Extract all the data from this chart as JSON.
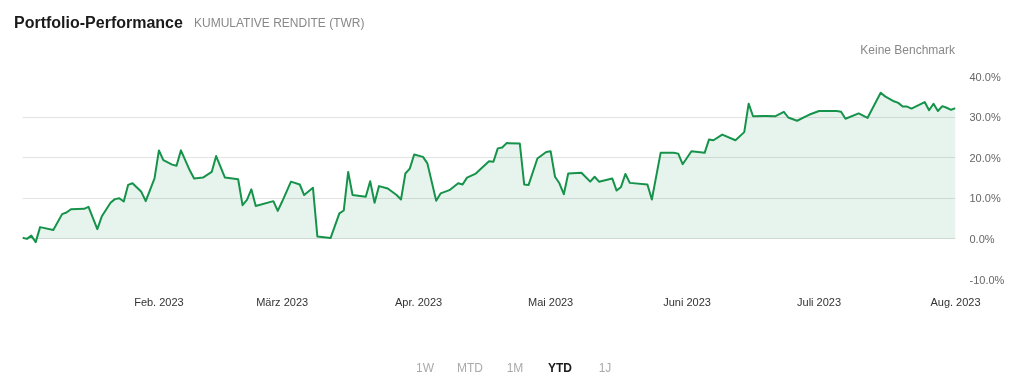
{
  "chart_data": {
    "type": "area",
    "title": "Portfolio-Performance",
    "subtitle": "KUMULATIVE RENDITE (TWR)",
    "annotations": [
      "Keine Benchmark",
      "1W",
      "MTD",
      "1M",
      "YTD",
      "1J"
    ],
    "x": [
      "2023-01-01",
      "2023-01-02",
      "2023-01-03",
      "2023-01-04",
      "2023-01-05",
      "2023-01-08",
      "2023-01-10",
      "2023-01-11",
      "2023-01-12",
      "2023-01-15",
      "2023-01-16",
      "2023-01-18",
      "2023-01-19",
      "2023-01-21",
      "2023-01-22",
      "2023-01-23",
      "2023-01-24",
      "2023-01-25",
      "2023-01-26",
      "2023-01-28",
      "2023-01-29",
      "2023-01-31",
      "2023-02-01",
      "2023-02-02",
      "2023-02-04",
      "2023-02-05",
      "2023-02-06",
      "2023-02-08",
      "2023-02-09",
      "2023-02-11",
      "2023-02-13",
      "2023-02-14",
      "2023-02-16",
      "2023-02-19",
      "2023-02-20",
      "2023-02-21",
      "2023-02-22",
      "2023-02-23",
      "2023-02-27",
      "2023-02-28",
      "2023-03-01",
      "2023-03-03",
      "2023-03-05",
      "2023-03-06",
      "2023-03-08",
      "2023-03-09",
      "2023-03-12",
      "2023-03-14",
      "2023-03-15",
      "2023-03-16",
      "2023-03-17",
      "2023-03-20",
      "2023-03-21",
      "2023-03-22",
      "2023-03-23",
      "2023-03-25",
      "2023-03-27",
      "2023-03-28",
      "2023-03-29",
      "2023-03-30",
      "2023-03-31",
      "2023-04-02",
      "2023-04-03",
      "2023-04-05",
      "2023-04-06",
      "2023-04-08",
      "2023-04-10",
      "2023-04-11",
      "2023-04-12",
      "2023-04-14",
      "2023-04-17",
      "2023-04-18",
      "2023-04-19",
      "2023-04-20",
      "2023-04-21",
      "2023-04-24",
      "2023-04-25",
      "2023-04-26",
      "2023-04-28",
      "2023-04-30",
      "2023-05-01",
      "2023-05-02",
      "2023-05-03",
      "2023-05-04",
      "2023-05-05",
      "2023-05-08",
      "2023-05-10",
      "2023-05-11",
      "2023-05-12",
      "2023-05-15",
      "2023-05-16",
      "2023-05-17",
      "2023-05-18",
      "2023-05-19",
      "2023-05-23",
      "2023-05-24",
      "2023-05-26",
      "2023-05-29",
      "2023-05-30",
      "2023-05-31",
      "2023-06-02",
      "2023-06-05",
      "2023-06-06",
      "2023-06-07",
      "2023-06-09",
      "2023-06-12",
      "2023-06-14",
      "2023-06-15",
      "2023-06-16",
      "2023-06-19",
      "2023-06-21",
      "2023-06-23",
      "2023-06-24",
      "2023-06-26",
      "2023-06-28",
      "2023-06-29",
      "2023-07-01",
      "2023-07-05",
      "2023-07-06",
      "2023-07-07",
      "2023-07-10",
      "2023-07-12",
      "2023-07-15",
      "2023-07-16",
      "2023-07-18",
      "2023-07-19",
      "2023-07-20",
      "2023-07-21",
      "2023-07-22",
      "2023-07-25",
      "2023-07-26",
      "2023-07-27",
      "2023-07-28",
      "2023-07-29",
      "2023-07-30",
      "2023-07-31",
      "2023-08-01"
    ],
    "series": [
      {
        "color": "#16934a",
        "values": [
          0.3,
          0.0,
          0.8,
          -0.8,
          2.9,
          2.2,
          6.1,
          6.5,
          7.3,
          7.4,
          7.9,
          2.4,
          5.5,
          8.9,
          9.8,
          10.0,
          9.2,
          13.3,
          13.7,
          11.6,
          9.3,
          14.9,
          21.8,
          19.4,
          18.3,
          18.0,
          21.8,
          16.9,
          14.9,
          15.1,
          16.5,
          20.4,
          15.1,
          14.7,
          8.3,
          9.6,
          12.2,
          8.1,
          9.3,
          6.9,
          9.2,
          14.1,
          13.4,
          10.8,
          12.6,
          0.6,
          0.2,
          6.3,
          7.0,
          16.5,
          10.8,
          10.4,
          14.2,
          8.9,
          13.0,
          12.4,
          10.8,
          9.7,
          16.1,
          17.3,
          20.8,
          20.2,
          18.6,
          9.4,
          11.2,
          12.0,
          13.7,
          13.4,
          15.1,
          16.1,
          19.1,
          19.0,
          22.3,
          22.5,
          23.6,
          23.5,
          13.4,
          13.3,
          19.8,
          21.4,
          21.6,
          15.3,
          13.7,
          11.0,
          16.1,
          16.3,
          14.1,
          15.3,
          14.1,
          14.9,
          11.9,
          12.8,
          16.0,
          13.8,
          13.4,
          9.7,
          21.2,
          21.2,
          21.0,
          18.4,
          21.6,
          21.2,
          24.5,
          24.3,
          25.7,
          24.3,
          26.3,
          33.3,
          30.2,
          30.3,
          30.2,
          31.3,
          29.9,
          29.1,
          30.2,
          30.7,
          31.5,
          31.5,
          31.3,
          29.6,
          30.9,
          29.8,
          36.0,
          35.1,
          33.9,
          33.5,
          32.6,
          32.6,
          32.1,
          33.7,
          31.7,
          33.3,
          31.5,
          32.7,
          32.3,
          31.8,
          32.2
        ]
      }
    ],
    "xlim": [
      "2023-01-01",
      "2023-08-01"
    ],
    "xticks": [
      {
        "value": "2023-02-01",
        "label": "Feb. 2023"
      },
      {
        "value": "2023-03-01",
        "label": "März 2023"
      },
      {
        "value": "2023-04-01",
        "label": "Apr. 2023"
      },
      {
        "value": "2023-05-01",
        "label": "Mai 2023"
      },
      {
        "value": "2023-06-01",
        "label": "Juni 2023"
      },
      {
        "value": "2023-07-01",
        "label": "Juli 2023"
      },
      {
        "value": "2023-08-01",
        "label": "Aug. 2023"
      }
    ],
    "ylim": [
      -10,
      40
    ],
    "yticks": [
      {
        "value": -10,
        "label": "-10.0%"
      },
      {
        "value": 0,
        "label": "0.0%"
      },
      {
        "value": 10,
        "label": "10.0%"
      },
      {
        "value": 20,
        "label": "20.0%"
      },
      {
        "value": 30,
        "label": "30.0%"
      },
      {
        "value": 40,
        "label": "40.0%"
      }
    ],
    "grid": "y"
  }
}
